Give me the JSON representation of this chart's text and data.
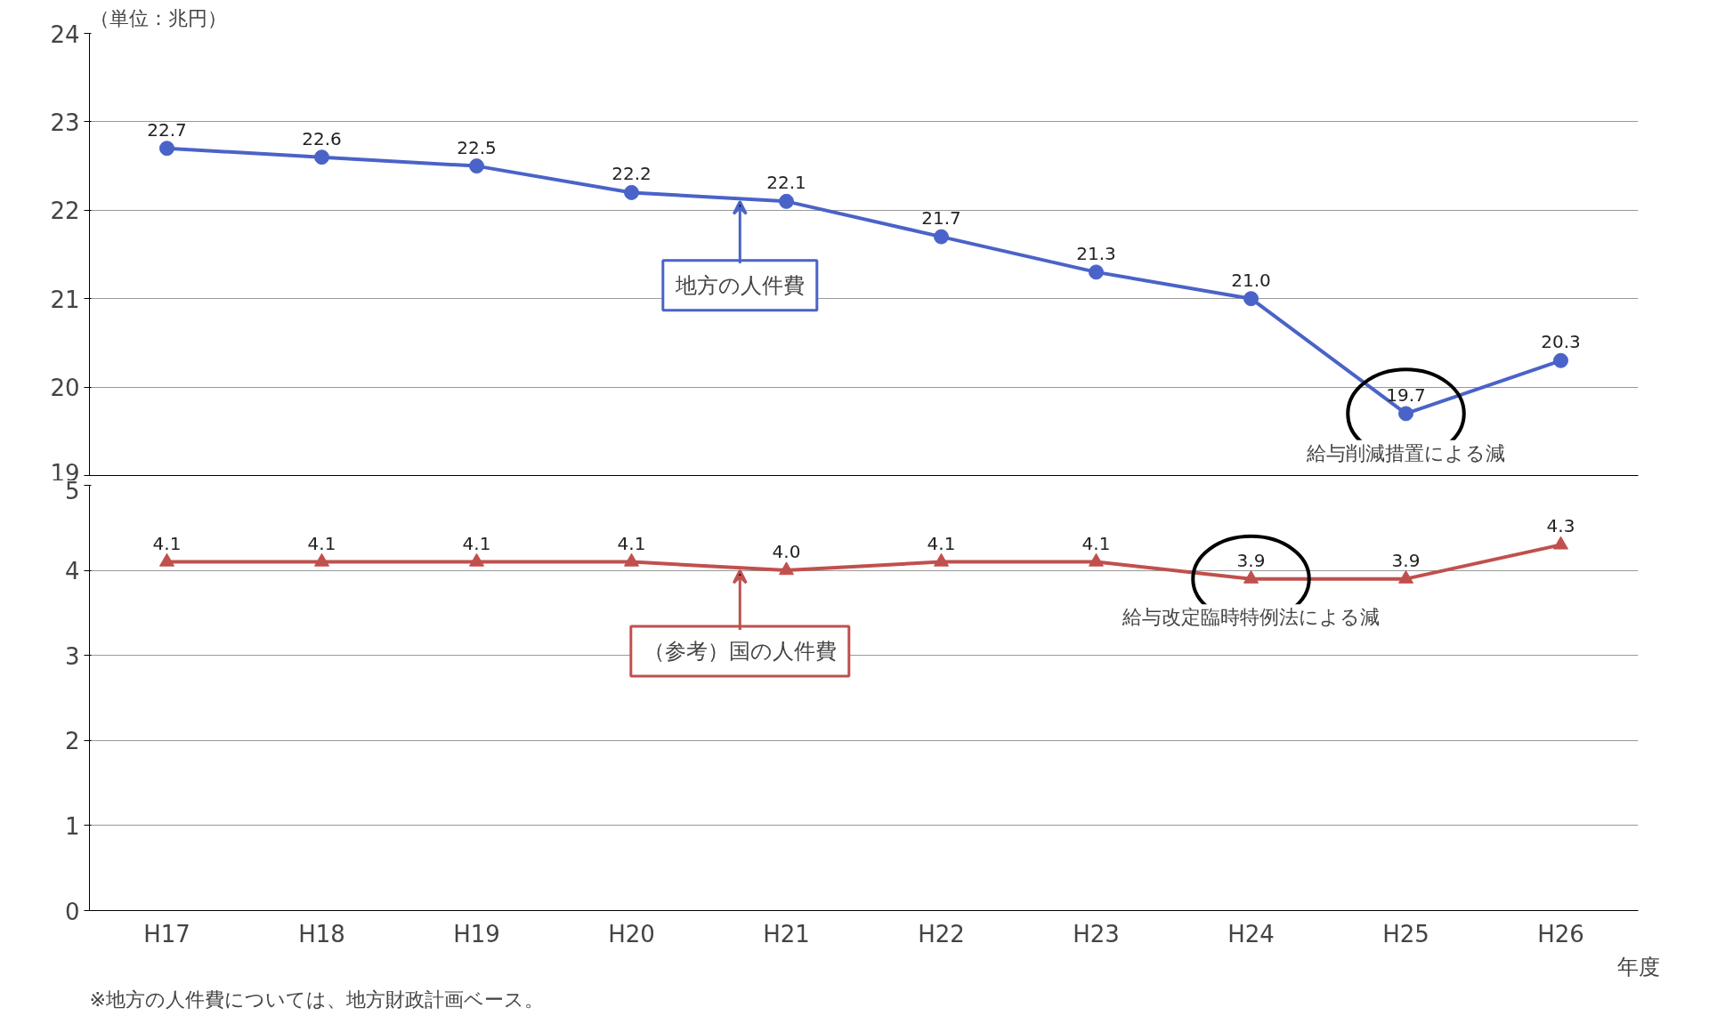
{
  "chart_data": [
    {
      "type": "line",
      "categories": [
        "H17",
        "H18",
        "H19",
        "H20",
        "H21",
        "H22",
        "H23",
        "H24",
        "H25",
        "H26"
      ],
      "series": [
        {
          "name": "地方の人件費",
          "color": "#4a63c8",
          "values": [
            22.7,
            22.6,
            22.5,
            22.2,
            22.1,
            21.7,
            21.3,
            21.0,
            19.7,
            20.3
          ]
        }
      ],
      "value_labels": [
        "22.7",
        "22.6",
        "22.5",
        "22.2",
        "22.1",
        "21.7",
        "21.3",
        "21.0",
        "19.7",
        "20.3"
      ],
      "ylim": [
        19,
        24
      ],
      "yticks": [
        19,
        20,
        21,
        22,
        23,
        24
      ],
      "grid": "y",
      "marker": "circle",
      "line_style": "solid",
      "tick_labels": "y",
      "annotations": [
        "（単位：兆円）",
        {
          "text": "給与削減措置による減",
          "x": "H25",
          "y": 19.7
        }
      ]
    },
    {
      "type": "line",
      "categories": [
        "H17",
        "H18",
        "H19",
        "H20",
        "H21",
        "H22",
        "H23",
        "H24",
        "H25",
        "H26"
      ],
      "series": [
        {
          "name": "（参考）国の人件費",
          "color": "#c0504d",
          "values": [
            4.1,
            4.1,
            4.1,
            4.1,
            4.0,
            4.1,
            4.1,
            3.9,
            3.9,
            4.3
          ]
        }
      ],
      "value_labels": [
        "4.1",
        "4.1",
        "4.1",
        "4.1",
        "4.0",
        "4.1",
        "4.1",
        "3.9",
        "3.9",
        "4.3"
      ],
      "ylim": [
        0,
        5
      ],
      "yticks": [
        0,
        1,
        2,
        3,
        4,
        5
      ],
      "grid": "y",
      "marker": "triangle",
      "line_style": "solid",
      "xlabel": "年度",
      "annotations": [
        {
          "text": "給与改定臨時特例法による減",
          "x": "H24",
          "y": 3.9
        },
        "※地方の人件費については、地方財政計画ベース。"
      ]
    }
  ]
}
